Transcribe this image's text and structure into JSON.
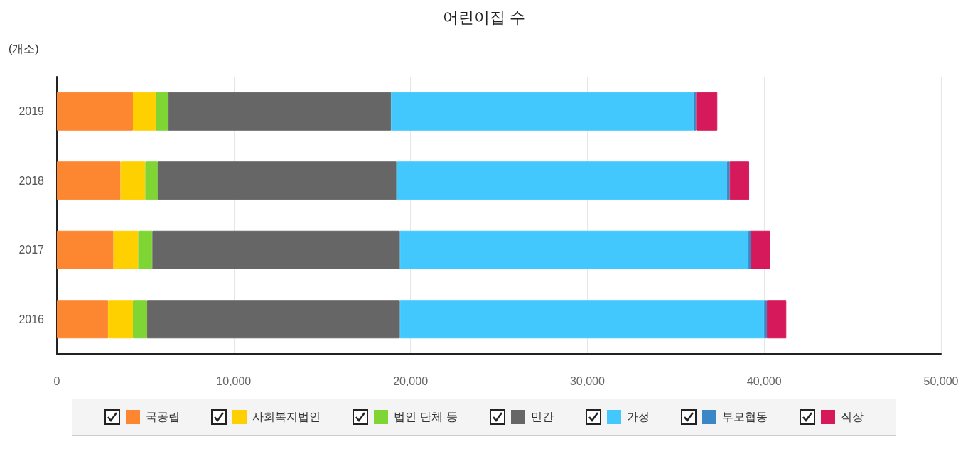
{
  "chart_data": {
    "type": "bar",
    "title": "어린이집 수",
    "xlabel": "(개소)",
    "orientation": "horizontal",
    "stacked": true,
    "categories": [
      "2019",
      "2018",
      "2017",
      "2016"
    ],
    "series": [
      {
        "name": "국공립",
        "color": "#fd8731",
        "values": [
          4300,
          3600,
          3200,
          2900
        ]
      },
      {
        "name": "사회복지법인",
        "color": "#ffd000",
        "values": [
          1300,
          1400,
          1400,
          1400
        ]
      },
      {
        "name": "법인 단체 등",
        "color": "#7ed534",
        "values": [
          700,
          700,
          800,
          800
        ]
      },
      {
        "name": "민간",
        "color": "#666666",
        "values": [
          12600,
          13500,
          14000,
          14300
        ]
      },
      {
        "name": "가정",
        "color": "#43c8fd",
        "values": [
          17100,
          18700,
          19700,
          20600
        ]
      },
      {
        "name": "부모협동",
        "color": "#3a87c8",
        "values": [
          150,
          150,
          150,
          150
        ]
      },
      {
        "name": "직장",
        "color": "#d5195a",
        "values": [
          1200,
          1100,
          1100,
          1100
        ]
      }
    ],
    "xlim": [
      0,
      50000
    ],
    "xticks": [
      0,
      {
        "value": 10000,
        "label": "10,000"
      },
      {
        "value": 20000,
        "label": "20,000"
      },
      {
        "value": 30000,
        "label": "30,000"
      },
      {
        "value": 40000,
        "label": "40,000"
      },
      {
        "value": 50000,
        "label": "50,000"
      }
    ],
    "grid": "x",
    "legend": "bottom"
  }
}
